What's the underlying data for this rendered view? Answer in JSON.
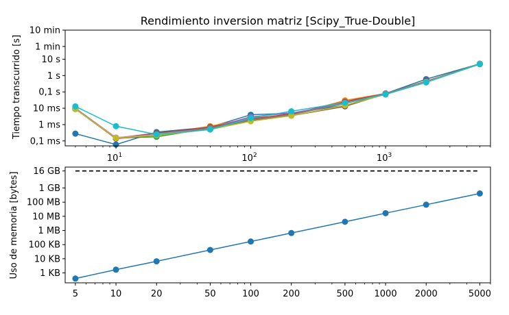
{
  "chart_data": [
    {
      "type": "line",
      "title": "Rendimiento inversion matriz [Scipy_True-Double]",
      "xlabel": "",
      "ylabel": "Tiempo transcurrido [s]",
      "xscale": "log",
      "yscale": "log",
      "xlim": [
        4.2,
        6000
      ],
      "ylim": [
        5e-05,
        600
      ],
      "x_ticks": [
        {
          "value": 10,
          "base": "10",
          "exp": "1"
        },
        {
          "value": 100,
          "base": "10",
          "exp": "2"
        },
        {
          "value": 1000,
          "base": "10",
          "exp": "3"
        }
      ],
      "y_ticks": [
        {
          "value": 0.0001,
          "label": "0,1 ms"
        },
        {
          "value": 0.001,
          "label": "1 ms"
        },
        {
          "value": 0.01,
          "label": "10 ms"
        },
        {
          "value": 0.1,
          "label": "0,1 s"
        },
        {
          "value": 1,
          "label": "1 s"
        },
        {
          "value": 10,
          "label": "10 s"
        },
        {
          "value": 60,
          "label": "1 min"
        },
        {
          "value": 600,
          "label": "10 min"
        }
      ],
      "x": [
        5,
        10,
        20,
        50,
        100,
        200,
        500,
        1000,
        2000,
        5000
      ],
      "series": [
        {
          "color": "#1f77b4",
          "values": [
            0.00028,
            6e-05,
            0.00035,
            0.0007,
            0.004,
            0.005,
            0.015,
            0.08,
            0.6,
            5.2
          ]
        },
        {
          "color": "#ff7f0e",
          "values": [
            0.01,
            0.00015,
            0.00025,
            0.0008,
            0.0025,
            0.004,
            0.03,
            0.08,
            0.42,
            5.3
          ]
        },
        {
          "color": "#2ca02c",
          "values": [
            0.009,
            0.00015,
            0.00018,
            0.0006,
            0.0018,
            0.004,
            0.02,
            0.075,
            0.4,
            5.1
          ]
        },
        {
          "color": "#d62728",
          "values": [
            0.009,
            0.00014,
            0.00022,
            0.0007,
            0.0022,
            0.0045,
            0.025,
            0.08,
            0.45,
            5.2
          ]
        },
        {
          "color": "#9467bd",
          "values": [
            0.01,
            0.00016,
            0.00024,
            0.0006,
            0.003,
            0.005,
            0.02,
            0.08,
            0.42,
            5.0
          ]
        },
        {
          "color": "#8c564b",
          "values": [
            0.009,
            0.00015,
            0.0003,
            0.0007,
            0.0018,
            0.0035,
            0.013,
            0.075,
            0.4,
            5.3
          ]
        },
        {
          "color": "#e377c2",
          "values": [
            0.009,
            0.00016,
            0.00025,
            0.0006,
            0.002,
            0.004,
            0.02,
            0.08,
            0.42,
            5.2
          ]
        },
        {
          "color": "#7f7f7f",
          "values": [
            0.009,
            0.00015,
            0.00022,
            0.0006,
            0.002,
            0.004,
            0.02,
            0.08,
            0.42,
            5.2
          ]
        },
        {
          "color": "#bcbd22",
          "values": [
            0.009,
            0.00015,
            0.00022,
            0.0005,
            0.0016,
            0.0035,
            0.015,
            0.07,
            0.4,
            5.1
          ]
        },
        {
          "color": "#17becf",
          "values": [
            0.013,
            0.0008,
            0.00025,
            0.0005,
            0.0025,
            0.0065,
            0.022,
            0.07,
            0.38,
            5.0
          ]
        }
      ]
    },
    {
      "type": "line",
      "title": "",
      "xlabel": "",
      "ylabel": "Uso de memoria [bytes]",
      "xscale": "log",
      "yscale": "log",
      "xlim": [
        4.2,
        6000
      ],
      "ylim": [
        200,
        30000000000
      ],
      "categories": [
        "5",
        "10",
        "20",
        "50",
        "100",
        "200",
        "500",
        "1000",
        "2000",
        "5000"
      ],
      "x": [
        5,
        10,
        20,
        50,
        100,
        200,
        500,
        1000,
        2000,
        5000
      ],
      "y_ticks": [
        {
          "value": 1000,
          "label": "1 KB"
        },
        {
          "value": 10000,
          "label": "10 KB"
        },
        {
          "value": 100000,
          "label": "100 KB"
        },
        {
          "value": 1000000,
          "label": "1 MB"
        },
        {
          "value": 10000000,
          "label": "10 MB"
        },
        {
          "value": 100000000,
          "label": "100 MB"
        },
        {
          "value": 1000000000,
          "label": "1 GB"
        },
        {
          "value": 16000000000,
          "label": "16 GB"
        }
      ],
      "series": [
        {
          "color": "#1f77b4",
          "values": [
            400,
            1700,
            6600,
            42000,
            166000,
            660000,
            4100000,
            16600000,
            66000000,
            410000000
          ]
        }
      ],
      "reference_line": {
        "value": 16000000000,
        "color": "#000000",
        "style": "dashed"
      }
    }
  ]
}
